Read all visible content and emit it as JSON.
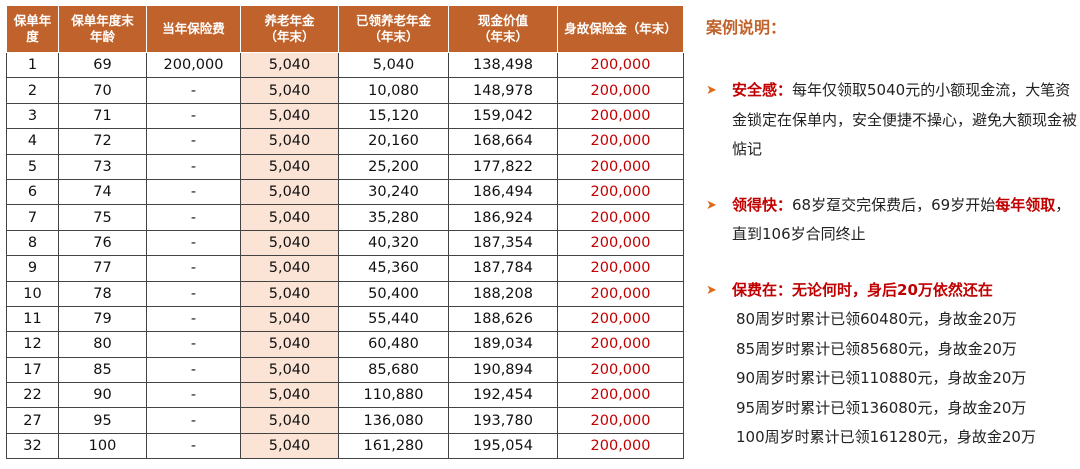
{
  "table": {
    "columns": [
      "保单年\n度",
      "保单年度末\n年龄",
      "当年保险费",
      "养老年金\n（年末）",
      "已领养老年金\n（年末）",
      "现金价值\n（年末）",
      "身故保险金（年末）"
    ],
    "rows": [
      [
        "1",
        "69",
        "200,000",
        "5,040",
        "5,040",
        "138,498",
        "200,000"
      ],
      [
        "2",
        "70",
        "-",
        "5,040",
        "10,080",
        "148,978",
        "200,000"
      ],
      [
        "3",
        "71",
        "-",
        "5,040",
        "15,120",
        "159,042",
        "200,000"
      ],
      [
        "4",
        "72",
        "-",
        "5,040",
        "20,160",
        "168,664",
        "200,000"
      ],
      [
        "5",
        "73",
        "-",
        "5,040",
        "25,200",
        "177,822",
        "200,000"
      ],
      [
        "6",
        "74",
        "-",
        "5,040",
        "30,240",
        "186,494",
        "200,000"
      ],
      [
        "7",
        "75",
        "-",
        "5,040",
        "35,280",
        "186,924",
        "200,000"
      ],
      [
        "8",
        "76",
        "-",
        "5,040",
        "40,320",
        "187,354",
        "200,000"
      ],
      [
        "9",
        "77",
        "-",
        "5,040",
        "45,360",
        "187,784",
        "200,000"
      ],
      [
        "10",
        "78",
        "-",
        "5,040",
        "50,400",
        "188,208",
        "200,000"
      ],
      [
        "11",
        "79",
        "-",
        "5,040",
        "55,440",
        "188,626",
        "200,000"
      ],
      [
        "12",
        "80",
        "-",
        "5,040",
        "60,480",
        "189,034",
        "200,000"
      ],
      [
        "17",
        "85",
        "-",
        "5,040",
        "85,680",
        "190,894",
        "200,000"
      ],
      [
        "22",
        "90",
        "-",
        "5,040",
        "110,880",
        "192,454",
        "200,000"
      ],
      [
        "27",
        "95",
        "-",
        "5,040",
        "136,080",
        "193,780",
        "200,000"
      ],
      [
        "32",
        "100",
        "-",
        "5,040",
        "161,280",
        "195,054",
        "200,000"
      ]
    ]
  },
  "notes": {
    "title": "案例说明：",
    "items": [
      {
        "parts": [
          {
            "text": "安全感：",
            "emphasis": true
          },
          {
            "text": "每年仅领取5040元的小额现金流，大笔资金锁定在保单内，安全便捷不操心，避免大额现金被惦记",
            "emphasis": false
          }
        ]
      },
      {
        "parts": [
          {
            "text": "领得快：",
            "emphasis": true
          },
          {
            "text": "68岁趸交完保费后，69岁开始",
            "emphasis": false
          },
          {
            "text": "每年领取",
            "emphasis": true
          },
          {
            "text": "，直到106岁合同终止",
            "emphasis": false
          }
        ]
      },
      {
        "parts": [
          {
            "text": "保费在：无论何时，身后20万依然还在",
            "emphasis": true
          }
        ],
        "details": [
          "80周岁时累计已领60480元，身故金20万",
          "85周岁时累计已领85680元，身故金20万",
          "90周岁时累计已领110880元，身故金20万",
          "95周岁时累计已领136080元，身故金20万",
          "100周岁时累计已领161280元，身故金20万"
        ]
      }
    ]
  }
}
